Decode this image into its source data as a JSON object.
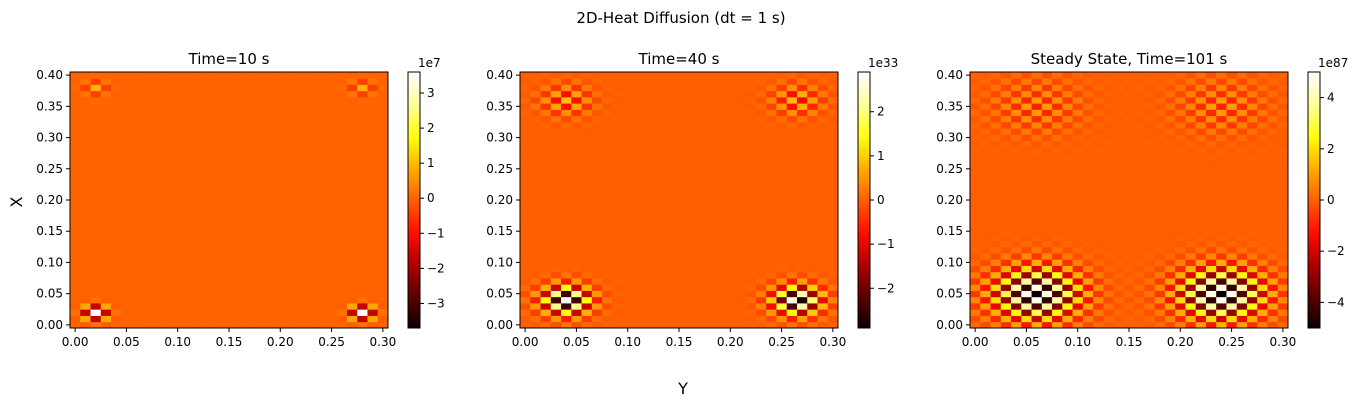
{
  "figure": {
    "suptitle": "2D-Heat Diffusion (dt = 1 s)",
    "xlabel": "Y",
    "ylabel": "X"
  },
  "colormap": [
    "#0b0000",
    "#5c0000",
    "#b00000",
    "#ff0f00",
    "#ff5f00",
    "#ffaf00",
    "#ffff10",
    "#ffff9f",
    "#ffffff"
  ],
  "chart_data": [
    {
      "type": "heatmap",
      "title": "Time=10 s",
      "xlabel": "Y",
      "ylabel": "X",
      "xlim": [
        -0.005,
        0.305
      ],
      "ylim": [
        -0.005,
        0.405
      ],
      "x_ticks": [
        "0.00",
        "0.05",
        "0.10",
        "0.15",
        "0.20",
        "0.25",
        "0.30"
      ],
      "y_ticks": [
        "0.00",
        "0.05",
        "0.10",
        "0.15",
        "0.20",
        "0.25",
        "0.30",
        "0.35",
        "0.40"
      ],
      "grid": {
        "nx": 31,
        "ny": 41,
        "dx": 0.01
      },
      "colorbar": {
        "exponent": "1e7",
        "min": -3.7,
        "max": 3.6,
        "ticks": [
          "−3",
          "−2",
          "−1",
          "0",
          "1",
          "2",
          "3"
        ]
      },
      "blobs": [
        {
          "x": 0.02,
          "y": 0.02,
          "amp": 3.6,
          "sigma": 0.008
        },
        {
          "x": 0.28,
          "y": 0.02,
          "amp": 3.6,
          "sigma": 0.008
        },
        {
          "x": 0.02,
          "y": 0.38,
          "amp": 0.9,
          "sigma": 0.008
        },
        {
          "x": 0.28,
          "y": 0.38,
          "amp": 0.9,
          "sigma": 0.008
        }
      ]
    },
    {
      "type": "heatmap",
      "title": "Time=40 s",
      "xlabel": "Y",
      "ylabel": "X",
      "xlim": [
        -0.005,
        0.305
      ],
      "ylim": [
        -0.005,
        0.405
      ],
      "x_ticks": [
        "0.00",
        "0.05",
        "0.10",
        "0.15",
        "0.20",
        "0.25",
        "0.30"
      ],
      "y_ticks": [
        "0.00",
        "0.05",
        "0.10",
        "0.15",
        "0.20",
        "0.25",
        "0.30",
        "0.35",
        "0.40"
      ],
      "grid": {
        "nx": 31,
        "ny": 41,
        "dx": 0.01
      },
      "colorbar": {
        "exponent": "1e33",
        "min": -2.9,
        "max": 2.9,
        "ticks": [
          "−2",
          "−1",
          "0",
          "1",
          "2"
        ]
      },
      "blobs": [
        {
          "x": 0.04,
          "y": 0.04,
          "amp": 2.9,
          "sigma": 0.017
        },
        {
          "x": 0.265,
          "y": 0.04,
          "amp": 2.9,
          "sigma": 0.017
        },
        {
          "x": 0.04,
          "y": 0.36,
          "amp": 0.9,
          "sigma": 0.017
        },
        {
          "x": 0.265,
          "y": 0.36,
          "amp": 0.9,
          "sigma": 0.017
        }
      ]
    },
    {
      "type": "heatmap",
      "title": "Steady State, Time=101 s",
      "xlabel": "Y",
      "ylabel": "X",
      "xlim": [
        -0.005,
        0.305
      ],
      "ylim": [
        -0.005,
        0.405
      ],
      "x_ticks": [
        "0.00",
        "0.05",
        "0.10",
        "0.15",
        "0.20",
        "0.25",
        "0.30"
      ],
      "y_ticks": [
        "0.00",
        "0.05",
        "0.10",
        "0.15",
        "0.20",
        "0.25",
        "0.30",
        "0.35",
        "0.40"
      ],
      "grid": {
        "nx": 31,
        "ny": 41,
        "dx": 0.01
      },
      "colorbar": {
        "exponent": "1e87",
        "min": -5.0,
        "max": 5.0,
        "ticks": [
          "−4",
          "−2",
          "0",
          "2",
          "4"
        ]
      },
      "blobs": [
        {
          "x": 0.06,
          "y": 0.05,
          "amp": 5.0,
          "sigma": 0.03
        },
        {
          "x": 0.24,
          "y": 0.05,
          "amp": 5.0,
          "sigma": 0.03
        },
        {
          "x": 0.06,
          "y": 0.35,
          "amp": 1.0,
          "sigma": 0.03
        },
        {
          "x": 0.24,
          "y": 0.35,
          "amp": 1.0,
          "sigma": 0.03
        }
      ]
    }
  ]
}
